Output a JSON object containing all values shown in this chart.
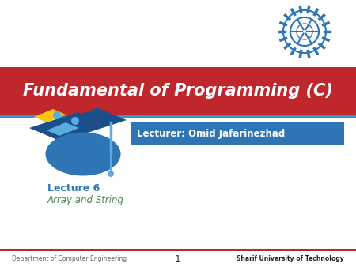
{
  "bg_color": "#ffffff",
  "red_banner_color": "#c0272d",
  "title_text": "Fundamental of Programming (C)",
  "title_color": "#ffffff",
  "title_fontsize": 15,
  "lecturer_box_color": "#2e75b6",
  "lecturer_text": "Lecturer: Omid Jafarinezhad",
  "lecturer_text_color": "#ffffff",
  "lecture_num_text": "Lecture 6",
  "lecture_num_color": "#2e75b6",
  "lecture_topic_text": "Array and String",
  "lecture_topic_color": "#4a8a4a",
  "dept_text": "Department of Computer Engineering",
  "dept_color": "#666666",
  "page_num": "1",
  "page_num_color": "#333333",
  "university_text": "Sharif University of Technology",
  "university_color": "#222222",
  "logo_color": "#2e75b6",
  "cap_dark": "#1a4f8a",
  "cap_blue": "#2e75b6",
  "cap_light_blue": "#5aade2",
  "puzzle_red": "#c0272d",
  "puzzle_yellow": "#f5c518",
  "puzzle_cyan": "#5aade2"
}
